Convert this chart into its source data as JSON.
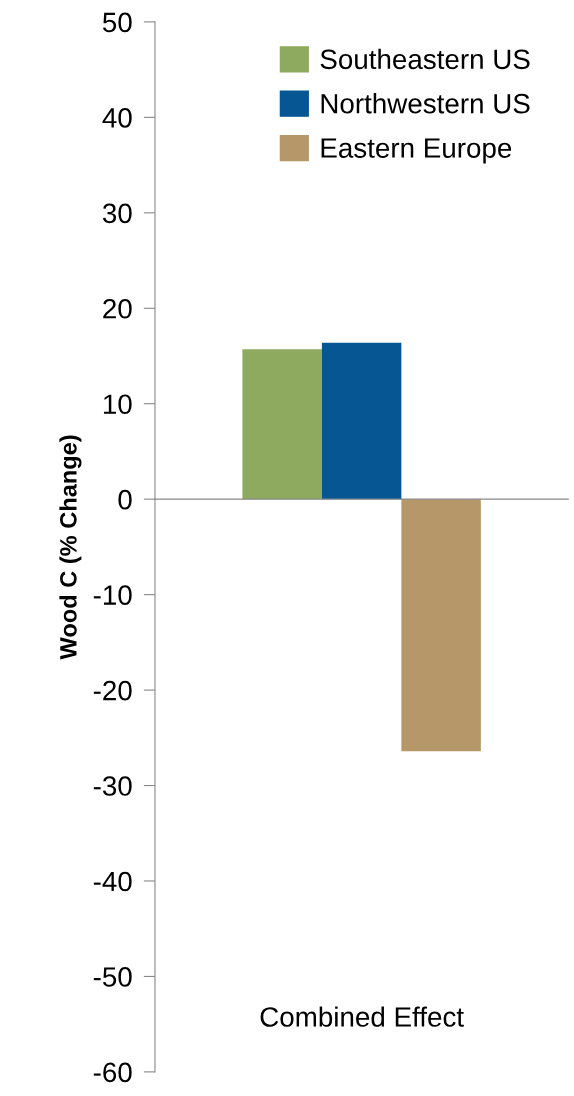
{
  "chart_data": {
    "type": "bar",
    "ylabel": "Wood C (% Change)",
    "categories": [
      "Combined Effect"
    ],
    "series": [
      {
        "name": "Southeastern US",
        "color": "#8eaa5e",
        "values": [
          15.7
        ]
      },
      {
        "name": "Northwestern US",
        "color": "#065694",
        "values": [
          16.4
        ]
      },
      {
        "name": "Eastern Europe",
        "color": "#b5976a",
        "values": [
          -26.4
        ]
      }
    ],
    "ylim": [
      -60,
      50
    ],
    "yticks": [
      -60,
      -50,
      -40,
      -30,
      -20,
      -10,
      0,
      10,
      20,
      30,
      40,
      50
    ],
    "legend": "top right"
  }
}
